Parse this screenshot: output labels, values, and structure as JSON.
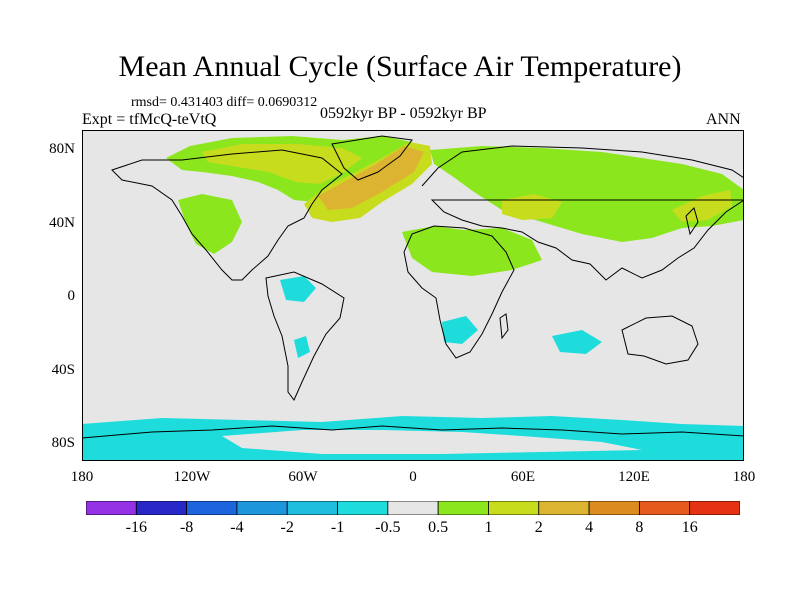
{
  "title": "Mean Annual Cycle (Surface Air Temperature)",
  "stats": "rmsd= 0.431403 diff= 0.0690312",
  "experiment": "Expt = tfMcQ-teVtQ",
  "period": "0592kyr BP - 0592kyr BP",
  "season": "ANN",
  "map": {
    "projection": "cylindrical equidistant",
    "lon_range": [
      -180,
      180
    ],
    "lat_range": [
      -90,
      90
    ],
    "y_ticks": [
      "80N",
      "40N",
      "0",
      "40S",
      "80S"
    ],
    "x_ticks": [
      "180",
      "120W",
      "60W",
      "0",
      "60E",
      "120E",
      "180"
    ],
    "background_color": "#e6e6e6",
    "regions": [
      {
        "name": "canada-arctic",
        "level": "0.5-1",
        "color": "#8ce61e"
      },
      {
        "name": "canada-arctic-core",
        "level": "1-2",
        "color": "#c8dc1e"
      },
      {
        "name": "north-atlantic",
        "level": "1-2",
        "color": "#c8dc1e"
      },
      {
        "name": "north-atlantic-core",
        "level": "2-4",
        "color": "#dcb432"
      },
      {
        "name": "eurasia",
        "level": "0.5-1",
        "color": "#8ce61e"
      },
      {
        "name": "central-asia",
        "level": "1-2",
        "color": "#c8dc1e"
      },
      {
        "name": "north-africa",
        "level": "0.5-1",
        "color": "#8ce61e"
      },
      {
        "name": "antarctica-coast",
        "level": "-1 to -0.5",
        "color": "#1edcdc"
      },
      {
        "name": "amazon",
        "level": "-1 to -0.5",
        "color": "#1edcdc"
      },
      {
        "name": "southern-africa",
        "level": "-1 to -0.5",
        "color": "#1edcdc"
      }
    ]
  },
  "colorbar": {
    "labels": [
      "-16",
      "-8",
      "-4",
      "-2",
      "-1",
      "-0.5",
      "0.5",
      "1",
      "2",
      "4",
      "8",
      "16"
    ],
    "colors": [
      "#9632e6",
      "#2828c8",
      "#1e64dc",
      "#1e96dc",
      "#1ebedc",
      "#1edcdc",
      "#e6e6e6",
      "#8ce61e",
      "#c8dc1e",
      "#dcb432",
      "#dc8c1e",
      "#e65a1e",
      "#e63214"
    ]
  }
}
